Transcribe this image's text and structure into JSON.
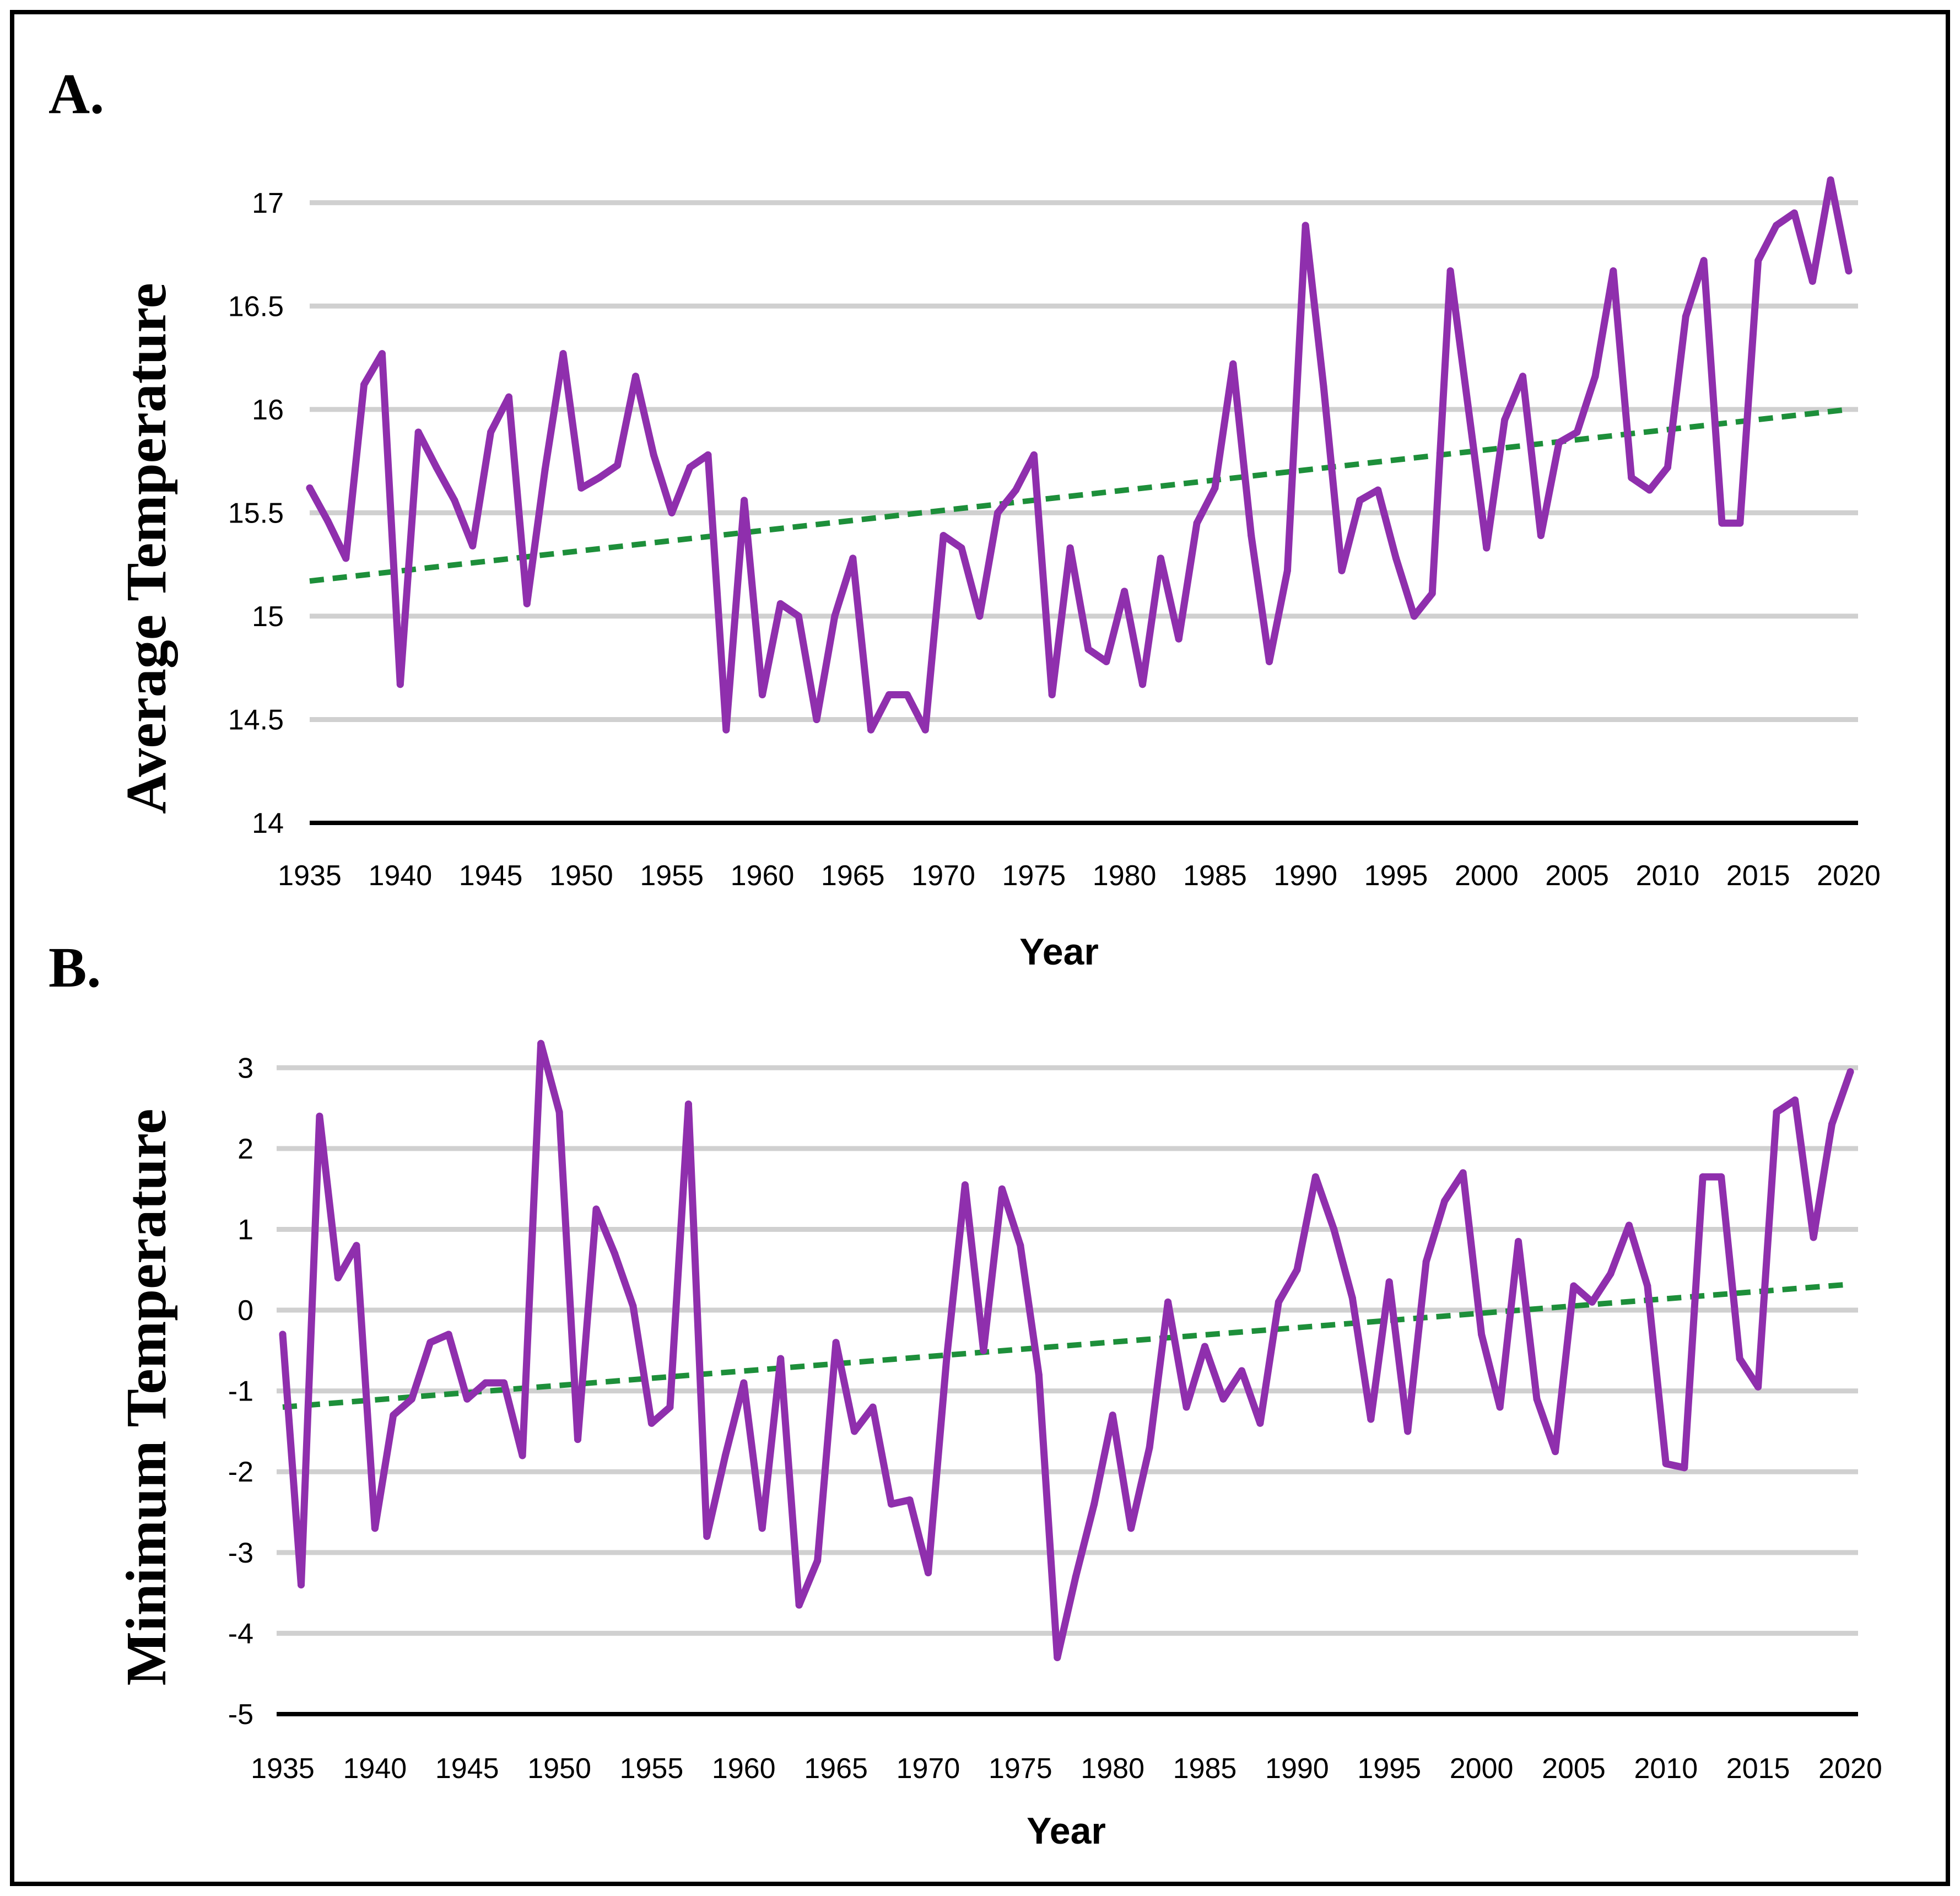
{
  "chart_data": [
    {
      "type": "line",
      "panel_label": "A.",
      "title": "",
      "xlabel": "Year",
      "ylabel": "Average Temperature",
      "xlim": [
        1935,
        2020
      ],
      "ylim": [
        14,
        17.25
      ],
      "y_ticks": [
        "14",
        "14.5",
        "15",
        "15.5",
        "16",
        "16.5",
        "17"
      ],
      "x_ticks": [
        "1935",
        "1940",
        "1945",
        "1950",
        "1955",
        "1960",
        "1965",
        "1970",
        "1975",
        "1980",
        "1985",
        "1990",
        "1995",
        "2000",
        "2005",
        "2010",
        "2015",
        "2020"
      ],
      "grid": true,
      "legend": "none",
      "colors": {
        "series": "#8f2fad",
        "trend": "#1d8f3a"
      },
      "series": [
        {
          "x": [
            1935,
            1936,
            1937,
            1938,
            1939,
            1940,
            1941,
            1942,
            1943,
            1944,
            1945,
            1946,
            1947,
            1948,
            1949,
            1950,
            1951,
            1952,
            1953,
            1954,
            1955,
            1956,
            1957,
            1958,
            1959,
            1960,
            1961,
            1962,
            1963,
            1964,
            1965,
            1966,
            1967,
            1968,
            1969,
            1970,
            1971,
            1972,
            1973,
            1974,
            1975,
            1976,
            1977,
            1978,
            1979,
            1980,
            1981,
            1982,
            1983,
            1984,
            1985,
            1986,
            1987,
            1988,
            1989,
            1990,
            1991,
            1992,
            1993,
            1994,
            1995,
            1996,
            1997,
            1998,
            1999,
            2000,
            2001,
            2002,
            2003,
            2004,
            2005,
            2006,
            2007,
            2008,
            2009,
            2010,
            2011,
            2012,
            2013,
            2014,
            2015,
            2016,
            2017,
            2018,
            2019,
            2020
          ],
          "values": [
            15.62,
            15.46,
            15.28,
            16.12,
            16.27,
            14.67,
            15.89,
            15.72,
            15.56,
            15.34,
            15.89,
            16.06,
            15.06,
            15.71,
            16.27,
            15.62,
            15.67,
            15.73,
            16.16,
            15.78,
            15.5,
            15.72,
            15.78,
            14.45,
            15.56,
            14.62,
            15.06,
            15.0,
            14.5,
            15.0,
            15.28,
            14.45,
            14.62,
            14.62,
            14.45,
            15.39,
            15.33,
            15.0,
            15.5,
            15.61,
            15.78,
            14.62,
            15.33,
            14.84,
            14.78,
            15.12,
            14.67,
            15.28,
            14.89,
            15.45,
            15.62,
            16.22,
            15.39,
            14.78,
            15.22,
            16.89,
            16.11,
            15.22,
            15.56,
            15.61,
            15.28,
            15.0,
            15.11,
            16.67,
            16.0,
            15.33,
            15.95,
            16.16,
            15.39,
            15.84,
            15.89,
            16.16,
            16.67,
            15.67,
            15.61,
            15.72,
            16.45,
            16.72,
            15.45,
            15.45,
            16.72,
            16.89,
            16.95,
            16.62,
            17.11,
            16.67
          ]
        }
      ],
      "trendline": {
        "x": [
          1935,
          2020
        ],
        "y": [
          15.17,
          16.0
        ]
      }
    },
    {
      "type": "line",
      "panel_label": "B.",
      "title": "",
      "xlabel": "Year",
      "ylabel": "Minimum Temperature",
      "xlim": [
        1935,
        2020
      ],
      "ylim": [
        -5,
        3.5
      ],
      "y_ticks": [
        "-5",
        "-4",
        "-3",
        "-2",
        "-1",
        "0",
        "1",
        "2",
        "3"
      ],
      "x_ticks": [
        "1935",
        "1940",
        "1945",
        "1950",
        "1955",
        "1960",
        "1965",
        "1970",
        "1975",
        "1980",
        "1985",
        "1990",
        "1995",
        "2000",
        "2005",
        "2010",
        "2015",
        "2020"
      ],
      "grid": true,
      "legend": "none",
      "colors": {
        "series": "#8f2fad",
        "trend": "#1d8f3a"
      },
      "series": [
        {
          "x": [
            1935,
            1936,
            1937,
            1938,
            1939,
            1940,
            1941,
            1942,
            1943,
            1944,
            1945,
            1946,
            1947,
            1948,
            1949,
            1950,
            1951,
            1952,
            1953,
            1954,
            1955,
            1956,
            1957,
            1958,
            1959,
            1960,
            1961,
            1962,
            1963,
            1964,
            1965,
            1966,
            1967,
            1968,
            1969,
            1970,
            1971,
            1972,
            1973,
            1974,
            1975,
            1976,
            1977,
            1978,
            1979,
            1980,
            1981,
            1982,
            1983,
            1984,
            1985,
            1986,
            1987,
            1988,
            1989,
            1990,
            1991,
            1992,
            1993,
            1994,
            1995,
            1996,
            1997,
            1998,
            1999,
            2000,
            2001,
            2002,
            2003,
            2004,
            2005,
            2006,
            2007,
            2008,
            2009,
            2010,
            2011,
            2012,
            2013,
            2014,
            2015,
            2016,
            2017,
            2018,
            2019,
            2020
          ],
          "values": [
            -0.3,
            -3.4,
            2.4,
            0.4,
            0.8,
            -2.7,
            -1.3,
            -1.1,
            -0.4,
            -0.3,
            -1.1,
            -0.9,
            -0.9,
            -1.8,
            3.3,
            2.45,
            -1.6,
            1.25,
            0.7,
            0.05,
            -1.4,
            -1.2,
            2.55,
            -2.8,
            -1.8,
            -0.9,
            -2.7,
            -0.6,
            -3.65,
            -3.1,
            -0.4,
            -1.5,
            -1.2,
            -2.4,
            -2.35,
            -3.25,
            -0.6,
            1.55,
            -0.5,
            1.5,
            0.8,
            -0.8,
            -4.3,
            -3.3,
            -2.4,
            -1.3,
            -2.7,
            -1.7,
            0.1,
            -1.2,
            -0.45,
            -1.1,
            -0.75,
            -1.4,
            0.1,
            0.5,
            1.65,
            1.0,
            0.15,
            -1.35,
            0.35,
            -1.5,
            0.6,
            1.35,
            1.7,
            -0.3,
            -1.2,
            0.85,
            -1.1,
            -1.75,
            0.3,
            0.1,
            0.45,
            1.05,
            0.3,
            -1.9,
            -1.95,
            1.65,
            1.65,
            -0.6,
            -0.95,
            2.45,
            2.6,
            0.9,
            2.3,
            2.95
          ]
        }
      ],
      "trendline": {
        "x": [
          1935,
          2020
        ],
        "y": [
          -1.2,
          0.32
        ]
      }
    }
  ]
}
